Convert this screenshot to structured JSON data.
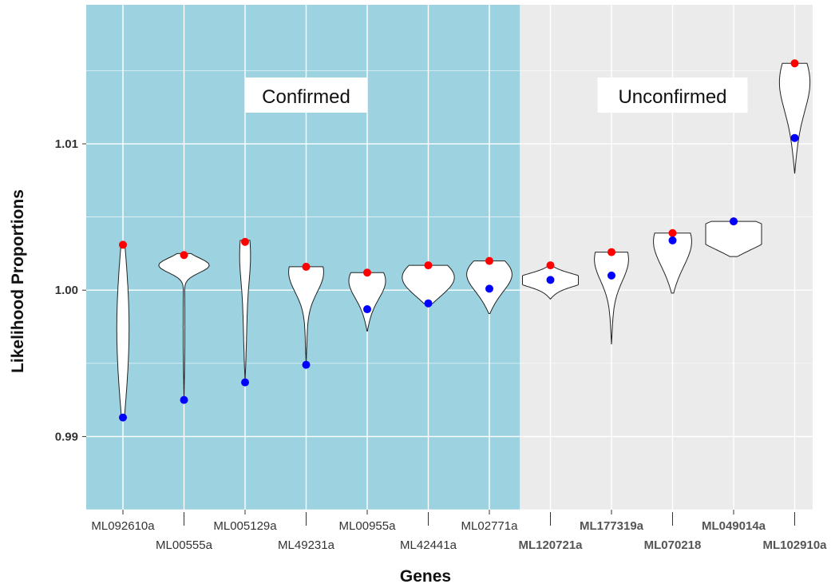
{
  "chart_data": {
    "type": "violin",
    "title": "",
    "xlabel": "Genes",
    "ylabel": "Likelihood Proportions",
    "ylim": [
      0.985,
      1.0195
    ],
    "yticks": [
      0.99,
      1.0,
      1.01
    ],
    "ytick_labels": [
      "0.99",
      "1.00",
      "1.01"
    ],
    "grid": true,
    "colors": {
      "confirmed_bg": "#9DD3E0",
      "unconfirmed_bg": "#EBEBEB",
      "grid": "#FFFFFF",
      "violin_fill": "#FFFFFF",
      "violin_stroke": "#222222",
      "red_point": "#FF0000",
      "blue_point": "#0000FF"
    },
    "groups": [
      {
        "label": "Confirmed",
        "start_index": 0,
        "end_index": 6
      },
      {
        "label": "Unconfirmed",
        "start_index": 7,
        "end_index": 11
      }
    ],
    "genes": [
      {
        "label": "ML092610a",
        "group": "Confirmed",
        "min": 0.9913,
        "max": 1.0031,
        "red": 1.0031,
        "blue": 0.9913,
        "mode": 0.998,
        "mode_width": 0.1,
        "mode_sd": 0.006,
        "base_width": 0.12
      },
      {
        "label": "ML00555a",
        "group": "Confirmed",
        "min": 0.9925,
        "max": 1.0025,
        "red": 1.0024,
        "blue": 0.9925,
        "mode": 1.0017,
        "mode_width": 0.9,
        "mode_sd": 0.0005,
        "base_width": 0.03
      },
      {
        "label": "ML005129a",
        "group": "Confirmed",
        "min": 0.9937,
        "max": 1.0034,
        "red": 1.0033,
        "blue": 0.9937,
        "mode": 1.0028,
        "mode_width": 0.18,
        "mode_sd": 0.002,
        "base_width": 0.06
      },
      {
        "label": "ML49231a",
        "group": "Confirmed",
        "min": 0.9949,
        "max": 1.0016,
        "red": 1.0016,
        "blue": 0.9949,
        "mode": 1.0013,
        "mode_width": 0.62,
        "mode_sd": 0.0014,
        "base_width": 0.04
      },
      {
        "label": "ML00955a",
        "group": "Confirmed",
        "min": 0.9972,
        "max": 1.0012,
        "red": 1.0012,
        "blue": 0.9987,
        "mode": 1.0008,
        "mode_width": 0.62,
        "mode_sd": 0.0012,
        "base_width": 0.1
      },
      {
        "label": "ML42441a",
        "group": "Confirmed",
        "min": 0.9991,
        "max": 1.0017,
        "red": 1.0017,
        "blue": 0.9991,
        "mode": 1.0012,
        "mode_width": 0.75,
        "mode_sd": 0.0012,
        "base_width": 0.25
      },
      {
        "label": "ML02771a",
        "group": "Confirmed",
        "min": 0.9984,
        "max": 1.002,
        "red": 1.002,
        "blue": 1.0001,
        "mode": 1.0013,
        "mode_width": 0.68,
        "mode_sd": 0.0011,
        "base_width": 0.2
      },
      {
        "label": "ML120721a",
        "group": "Unconfirmed",
        "min": 0.9994,
        "max": 1.0017,
        "red": 1.0017,
        "blue": 1.0007,
        "mode": 1.0007,
        "mode_width": 1.0,
        "mode_sd": 0.0004,
        "base_width": 0.3
      },
      {
        "label": "ML177319a",
        "group": "Unconfirmed",
        "min": 0.9963,
        "max": 1.0026,
        "red": 1.0026,
        "blue": 1.001,
        "mode": 1.0022,
        "mode_width": 0.6,
        "mode_sd": 0.0015,
        "base_width": 0.05
      },
      {
        "label": "ML070218",
        "group": "Unconfirmed",
        "min": 0.9998,
        "max": 1.0039,
        "red": 1.0039,
        "blue": 1.0034,
        "mode": 1.0036,
        "mode_width": 0.65,
        "mode_sd": 0.0016,
        "base_width": 0.1
      },
      {
        "label": "ML049014a",
        "group": "Unconfirmed",
        "min": 1.0023,
        "max": 1.0047,
        "red": 1.0047,
        "blue": 1.0047,
        "mode": 1.0041,
        "mode_width": 1.0,
        "mode_sd": 0.0009,
        "base_width": 0.5
      },
      {
        "label": "ML102910a",
        "group": "Unconfirmed",
        "min": 1.008,
        "max": 1.0155,
        "red": 1.0155,
        "blue": 1.0104,
        "mode": 1.0145,
        "mode_width": 0.5,
        "mode_sd": 0.002,
        "base_width": 0.1
      }
    ]
  }
}
